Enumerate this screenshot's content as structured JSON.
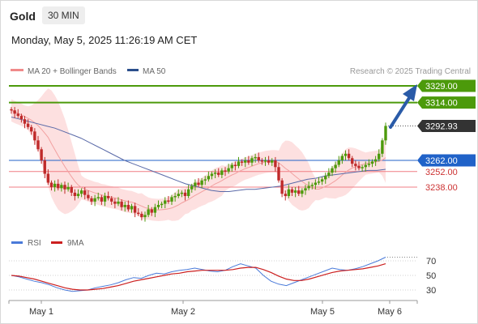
{
  "header": {
    "title": "Gold",
    "timeframe": "30 MIN",
    "timestamp": "Monday, May 5, 2025 11:26:19 AM CET"
  },
  "legend": {
    "ma20": "MA 20 + Bollinger Bands",
    "ma50": "MA 50",
    "rsi": "RSI",
    "rsi_ma": "9MA"
  },
  "credit": "Research © 2025 Trading Central",
  "colors": {
    "green": "#4c9a0b",
    "blue": "#2062c8",
    "pink": "#f07d84",
    "band": "#fde0e0",
    "candle_up": "#4c9a0b",
    "candle_down": "#bf2a2a",
    "arrow": "#2a5ba8",
    "ma50": "#5a6aa8",
    "rsi": "#4a7ad9",
    "rsi_ma": "#cc1f1f",
    "price_tag": "#333333"
  },
  "levels": [
    {
      "label": "3329.00",
      "value": 3329,
      "kind": "resistance"
    },
    {
      "label": "3314.00",
      "value": 3314,
      "kind": "resistance"
    },
    {
      "label": "3292.93",
      "value": 3292.93,
      "kind": "last"
    },
    {
      "label": "3262.00",
      "value": 3262,
      "kind": "pivot"
    },
    {
      "label": "3252.00",
      "value": 3252,
      "kind": "support"
    },
    {
      "label": "3238.00",
      "value": 3238,
      "kind": "support"
    }
  ],
  "rsi_ticks": [
    "70",
    "50",
    "30"
  ],
  "x_labels": [
    "May 1",
    "May 2",
    "May 5",
    "May 6"
  ],
  "chart_data": {
    "type": "candlestick",
    "title": "Gold",
    "timeframe": "30 MIN",
    "ylim": [
      3200,
      3340
    ],
    "levels": [
      3329,
      3314,
      3262,
      3252,
      3238
    ],
    "last_price": 3292.93,
    "closes": [
      3307,
      3304,
      3302,
      3299,
      3295,
      3292,
      3288,
      3280,
      3272,
      3262,
      3250,
      3242,
      3238,
      3241,
      3237,
      3240,
      3236,
      3238,
      3233,
      3230,
      3232,
      3235,
      3231,
      3228,
      3225,
      3228,
      3229,
      3225,
      3230,
      3228,
      3225,
      3223,
      3225,
      3220,
      3222,
      3218,
      3221,
      3215,
      3214,
      3211,
      3213,
      3218,
      3215,
      3220,
      3222,
      3223,
      3226,
      3225,
      3229,
      3230,
      3232,
      3233,
      3230,
      3236,
      3239,
      3242,
      3240,
      3244,
      3245,
      3248,
      3250,
      3251,
      3249,
      3253,
      3252,
      3255,
      3258,
      3257,
      3261,
      3260,
      3262,
      3260,
      3264,
      3265,
      3262,
      3261,
      3262,
      3260,
      3262,
      3256,
      3244,
      3232,
      3230,
      3236,
      3233,
      3235,
      3232,
      3235,
      3237,
      3239,
      3240,
      3242,
      3243,
      3245,
      3248,
      3251,
      3255,
      3258,
      3262,
      3266,
      3268,
      3264,
      3259,
      3257,
      3255,
      3256,
      3258,
      3259,
      3261,
      3263,
      3268,
      3280,
      3293
    ],
    "ma50": [
      3301,
      3299,
      3297,
      3295,
      3293,
      3291,
      3288,
      3285,
      3282,
      3278,
      3274,
      3270,
      3266,
      3262,
      3259,
      3256,
      3253,
      3250,
      3247,
      3244,
      3241,
      3239,
      3237,
      3235,
      3234,
      3234,
      3235,
      3236,
      3236,
      3237,
      3238,
      3239,
      3241,
      3243,
      3245,
      3246,
      3248,
      3249,
      3250,
      3251,
      3252,
      3253,
      3253,
      3254
    ],
    "rsi": {
      "ticks": [
        70,
        50,
        30
      ],
      "values": [
        50,
        48,
        45,
        42,
        40,
        37,
        33,
        30,
        28,
        29,
        30,
        33,
        35,
        37,
        40,
        44,
        47,
        46,
        50,
        53,
        52,
        55,
        57,
        58,
        60,
        58,
        56,
        55,
        57,
        62,
        66,
        63,
        60,
        50,
        42,
        38,
        36,
        40,
        44,
        48,
        52,
        56,
        60,
        58,
        57,
        59,
        62,
        66,
        70,
        75
      ],
      "ma": [
        50,
        49,
        47,
        45,
        42,
        39,
        36,
        33,
        31,
        30,
        30,
        31,
        32,
        34,
        36,
        39,
        42,
        44,
        46,
        48,
        50,
        52,
        53,
        55,
        56,
        57,
        57,
        57,
        57,
        58,
        60,
        61,
        61,
        58,
        54,
        49,
        45,
        43,
        43,
        45,
        48,
        51,
        54,
        56,
        57,
        58,
        59,
        61,
        63,
        66
      ]
    }
  }
}
